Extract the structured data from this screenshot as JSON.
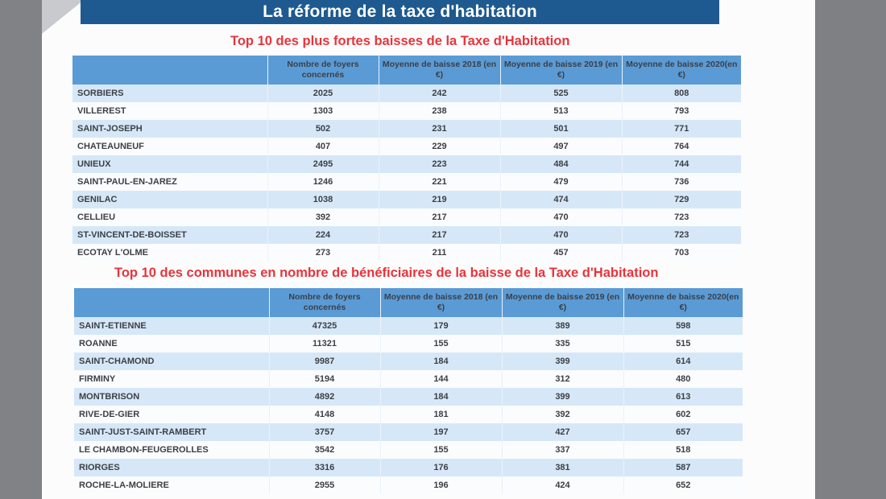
{
  "banner_title": "La réforme de la taxe d'habitation",
  "table1": {
    "title": "Top 10 des plus fortes baisses de la Taxe d'Habitation",
    "headers": [
      "",
      "Nombre de foyers concernés",
      "Moyenne de baisse 2018 (en €)",
      "Moyenne de baisse 2019 (en €)",
      "Moyenne de baisse 2020(en €)"
    ],
    "rows": [
      [
        "SORBIERS",
        "2025",
        "242",
        "525",
        "808"
      ],
      [
        "VILLEREST",
        "1303",
        "238",
        "513",
        "793"
      ],
      [
        "SAINT-JOSEPH",
        "502",
        "231",
        "501",
        "771"
      ],
      [
        "CHATEAUNEUF",
        "407",
        "229",
        "497",
        "764"
      ],
      [
        "UNIEUX",
        "2495",
        "223",
        "484",
        "744"
      ],
      [
        "SAINT-PAUL-EN-JAREZ",
        "1246",
        "221",
        "479",
        "736"
      ],
      [
        "GENILAC",
        "1038",
        "219",
        "474",
        "729"
      ],
      [
        "CELLIEU",
        "392",
        "217",
        "470",
        "723"
      ],
      [
        "ST-VINCENT-DE-BOISSET",
        "224",
        "217",
        "470",
        "723"
      ],
      [
        "ECOTAY L'OLME",
        "273",
        "211",
        "457",
        "703"
      ]
    ]
  },
  "table2": {
    "title": "Top 10 des communes en nombre de bénéficiaires de la baisse de la Taxe d'Habitation",
    "headers": [
      "",
      "Nombre de foyers concernés",
      "Moyenne de baisse 2018 (en €)",
      "Moyenne de baisse 2019 (en €)",
      "Moyenne de baisse 2020(en €)"
    ],
    "rows": [
      [
        "SAINT-ETIENNE",
        "47325",
        "179",
        "389",
        "598"
      ],
      [
        "ROANNE",
        "11321",
        "155",
        "335",
        "515"
      ],
      [
        "SAINT-CHAMOND",
        "9987",
        "184",
        "399",
        "614"
      ],
      [
        "FIRMINY",
        "5194",
        "144",
        "312",
        "480"
      ],
      [
        "MONTBRISON",
        "4892",
        "184",
        "399",
        "613"
      ],
      [
        "RIVE-DE-GIER",
        "4148",
        "181",
        "392",
        "602"
      ],
      [
        "SAINT-JUST-SAINT-RAMBERT",
        "3757",
        "197",
        "427",
        "657"
      ],
      [
        "LE CHAMBON-FEUGEROLLES",
        "3542",
        "155",
        "337",
        "518"
      ],
      [
        "RIORGES",
        "3316",
        "176",
        "381",
        "587"
      ],
      [
        "ROCHE-LA-MOLIERE",
        "2955",
        "196",
        "424",
        "652"
      ]
    ]
  }
}
